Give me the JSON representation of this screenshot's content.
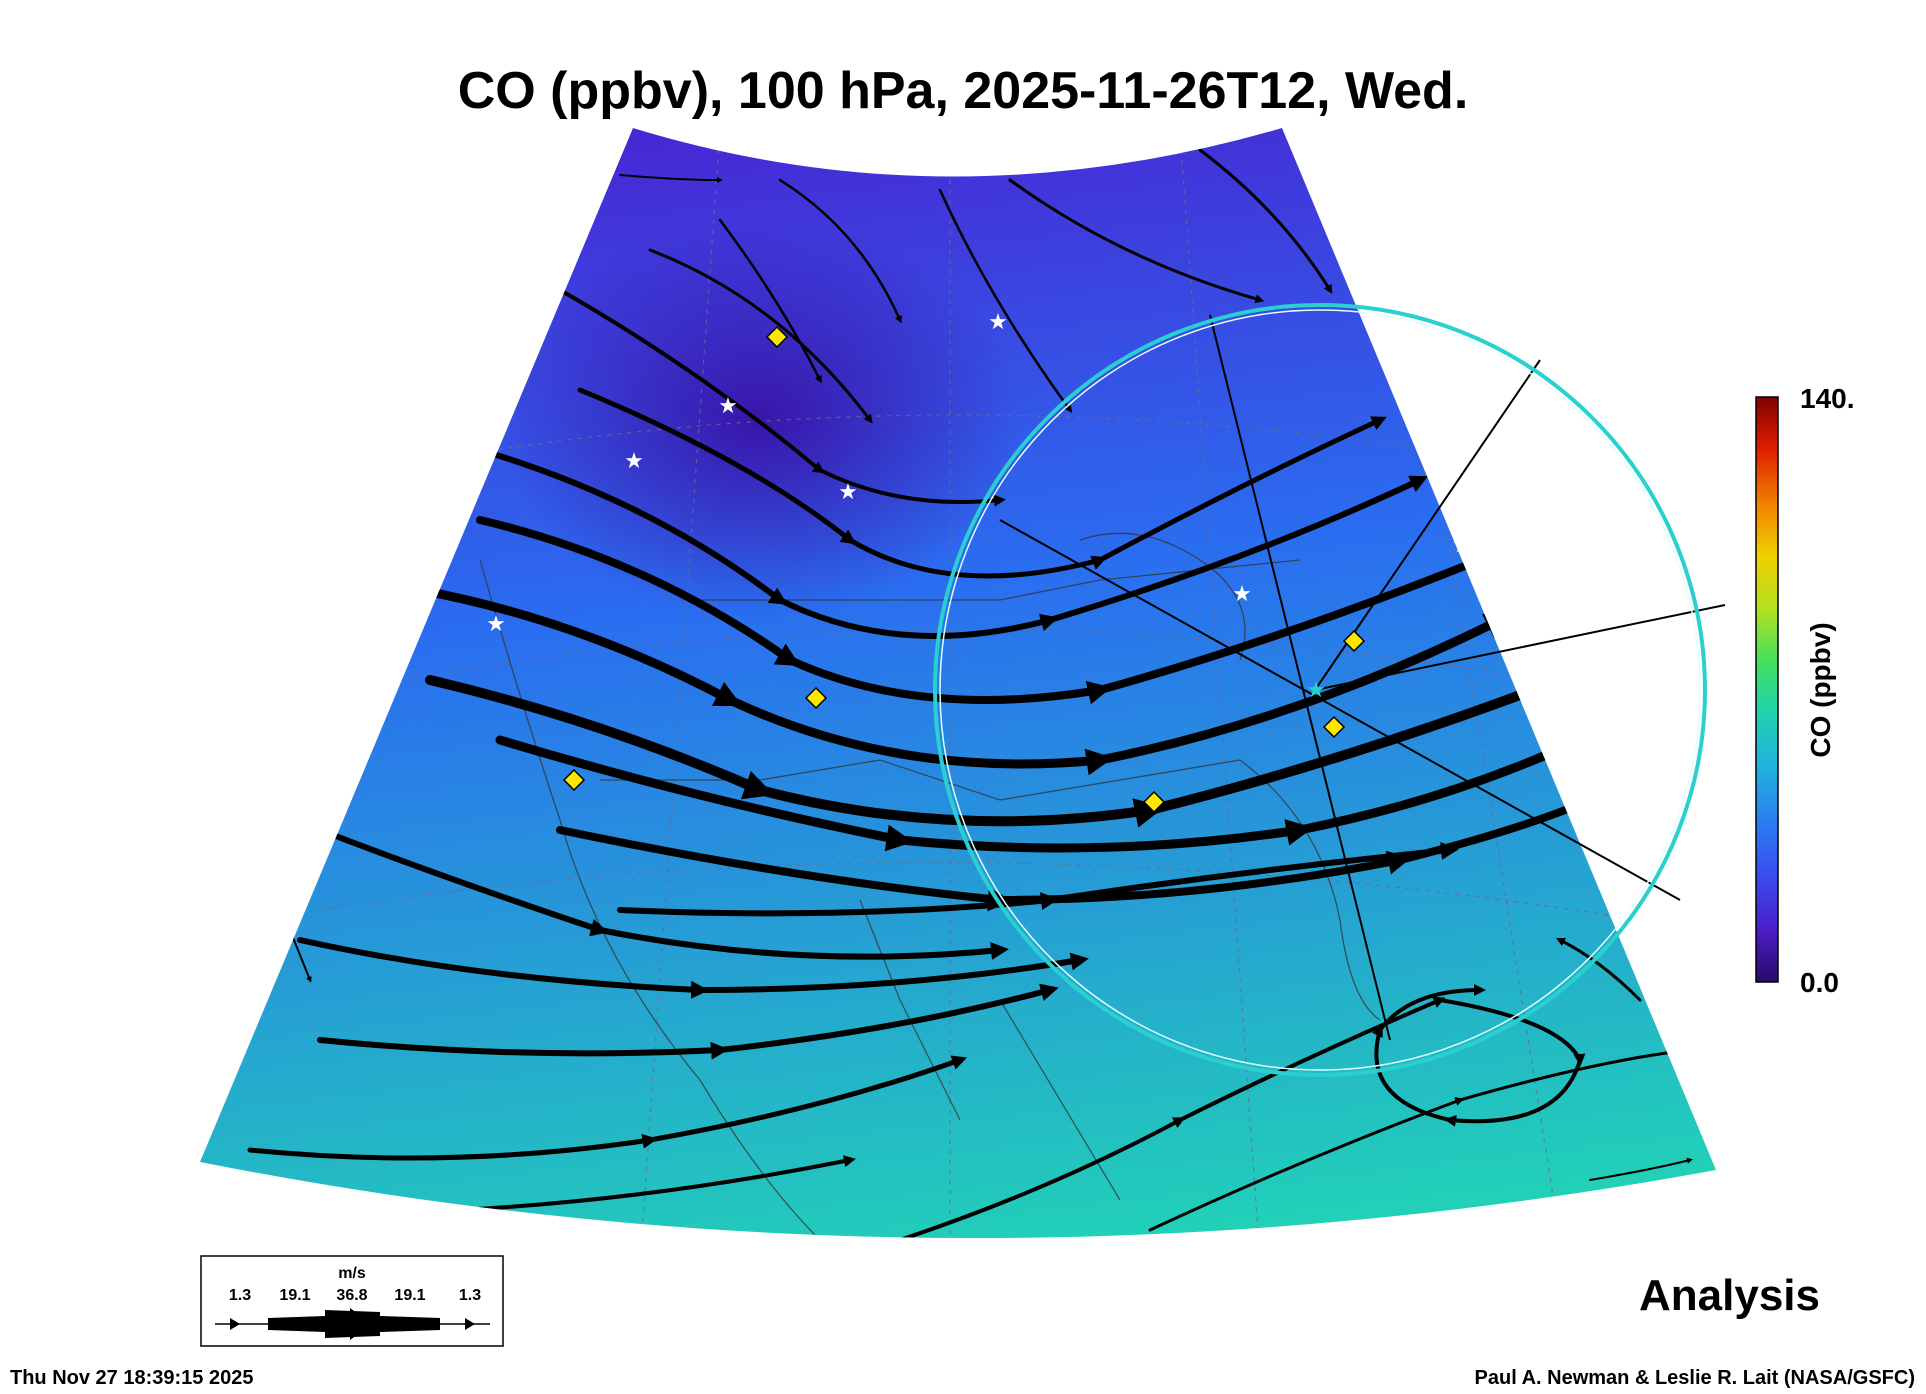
{
  "title": "CO (ppbv), 100 hPa, 2025-11-26T12, Wed.",
  "label_analysis": "Analysis",
  "timestamp": "Thu Nov 27 18:39:15 2025",
  "credit": "Paul A. Newman & Leslie R. Lait (NASA/GSFC)",
  "colorbar": {
    "title": "CO (ppbv)",
    "max_label": "140.",
    "min_label": "0.0",
    "range": [
      0,
      140
    ],
    "colors": [
      "#2a0a6a",
      "#4b1ec8",
      "#3a4df0",
      "#2a7ef0",
      "#20b0e0",
      "#20d0b0",
      "#40e060",
      "#b0e020",
      "#f0d000",
      "#f08000",
      "#e02000",
      "#800000"
    ]
  },
  "wind_legend": {
    "unit": "m/s",
    "speeds": [
      "1.3",
      "19.1",
      "36.8",
      "19.1",
      "1.3"
    ]
  },
  "field_colors": {
    "low": "#4a1ed0",
    "mid": "#2a6ef0",
    "high": "#22d0b8"
  },
  "markers": {
    "star_color": "#ffffff",
    "diamond_color": "#ffe600",
    "ring_color": "#2ad0d0"
  }
}
